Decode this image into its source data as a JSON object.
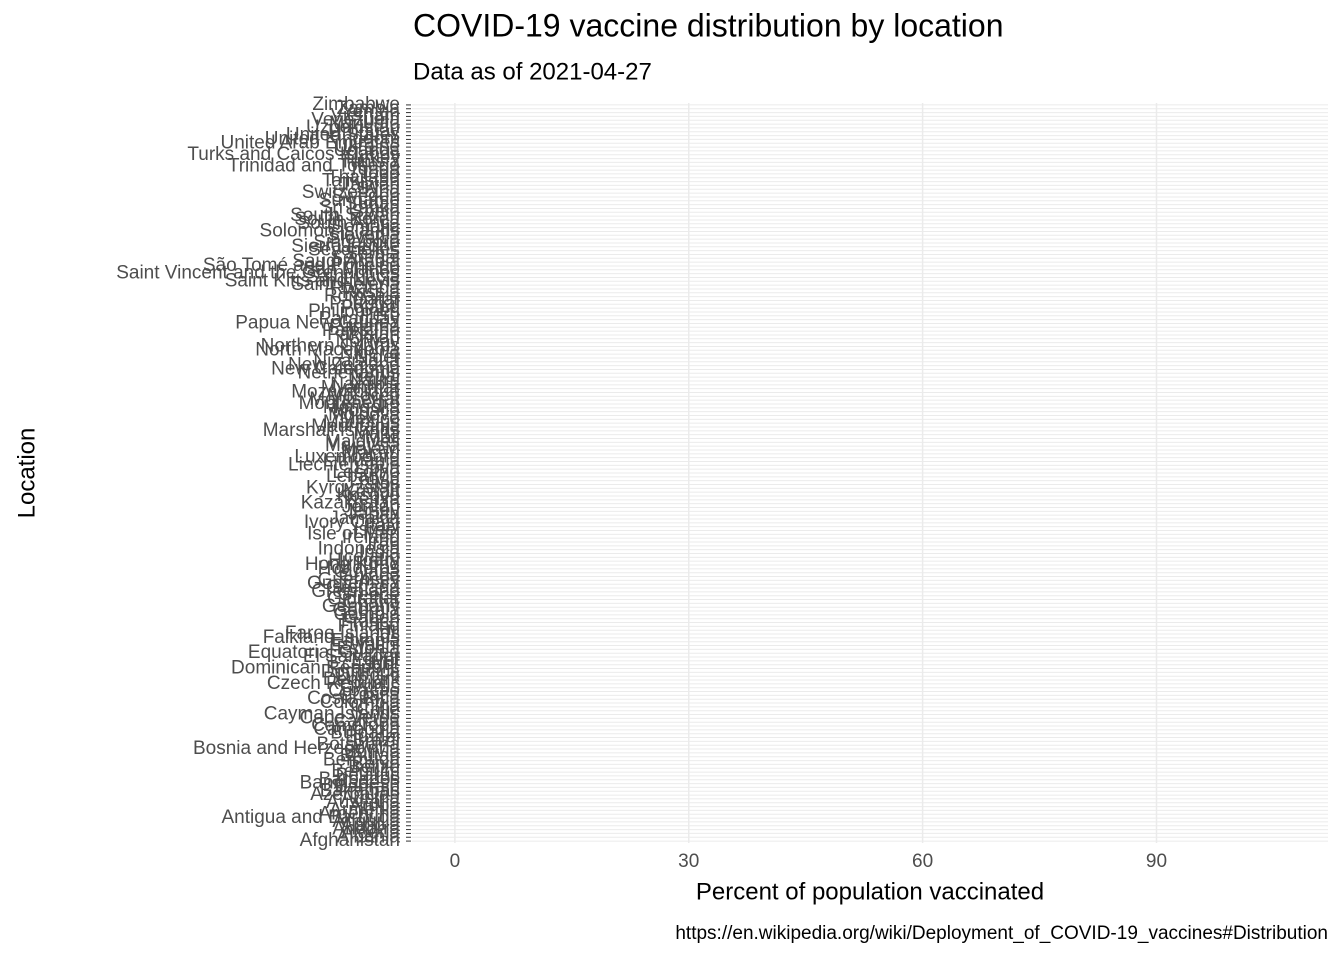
{
  "chart_data": {
    "type": "bar",
    "orientation": "horizontal",
    "title": "COVID-19 vaccine distribution by location",
    "subtitle": "Data as of 2021-04-27",
    "x_label": "Percent of population vaccinated",
    "y_label": "Location",
    "caption": "https://en.wikipedia.org/wiki/Deployment_of_COVID-19_vaccines#Distribution",
    "categories": [
      "Afghanistan",
      "Albania",
      "Algeria",
      "Andorra",
      "Angola",
      "Anguilla",
      "Antigua and Barbuda",
      "Argentina",
      "Armenia",
      "Aruba",
      "Australia",
      "Austria",
      "Azerbaijan",
      "Bahamas",
      "Bahrain",
      "Bangladesh",
      "Barbados",
      "Belarus",
      "Belgium",
      "Belize",
      "Benin",
      "Bermuda",
      "Bhutan",
      "Bolivia",
      "Bosnia and Herzegovina",
      "Botswana",
      "Brazil",
      "Brunei",
      "Bulgaria",
      "Cambodia",
      "Cameroon",
      "Canada",
      "Cape Verde",
      "Cayman Islands",
      "Chile",
      "China",
      "Colombia",
      "Costa Rica",
      "Croatia",
      "Curaçao",
      "Cyprus",
      "Czech Republic",
      "Denmark",
      "Djibouti",
      "Dominica",
      "Dominican Republic",
      "Ecuador",
      "Egypt",
      "El Salvador",
      "Equatorial Guinea",
      "Estonia",
      "Eswatini",
      "Ethiopia",
      "Falkland Islands",
      "Faroe Islands",
      "Fiji",
      "Finland",
      "France",
      "Gabon",
      "Gambia",
      "Georgia",
      "Germany",
      "Ghana",
      "Gibraltar",
      "Greece",
      "Greenland",
      "Grenada",
      "Guatemala",
      "Guernsey",
      "Guinea",
      "Guyana",
      "Honduras",
      "Hong Kong",
      "Hungary",
      "Iceland",
      "India",
      "Indonesia",
      "Iran",
      "Iraq",
      "Ireland",
      "Isle of Man",
      "Israel",
      "Italy",
      "Ivory Coast",
      "Jamaica",
      "Japan",
      "Jersey",
      "Jordan",
      "Kazakhstan",
      "Kenya",
      "Kosovo",
      "Kuwait",
      "Kyrgyzstan",
      "Laos",
      "Latvia",
      "Lebanon",
      "Lesotho",
      "Libya",
      "Liechtenstein",
      "Lithuania",
      "Luxembourg",
      "Macau",
      "Malawi",
      "Malaysia",
      "Maldives",
      "Mali",
      "Malta",
      "Marshall Islands",
      "Mauritania",
      "Mauritius",
      "Mexico",
      "Moldova",
      "Monaco",
      "Mongolia",
      "Montenegro",
      "Montserrat",
      "Morocco",
      "Mozambique",
      "Myanmar",
      "Namibia",
      "Nauru",
      "Nepal",
      "Netherlands",
      "New Caledonia",
      "New Zealand",
      "Nicaragua",
      "Niger",
      "Nigeria",
      "North Macedonia",
      "Northern Cyprus",
      "Norway",
      "Oman",
      "Pakistan",
      "Palestine",
      "Panama",
      "Papua New Guinea",
      "Paraguay",
      "Peru",
      "Philippines",
      "Poland",
      "Portugal",
      "Qatar",
      "Romania",
      "Russia",
      "Rwanda",
      "Saint Helena",
      "Saint Kitts and Nevis",
      "Saint Lucia",
      "Saint Vincent and the Grenadines",
      "San Marino",
      "São Tomé and Príncipe",
      "Saudi Arabia",
      "Senegal",
      "Serbia",
      "Seychelles",
      "Sierra Leone",
      "Singapore",
      "Slovakia",
      "Slovenia",
      "Solomon Islands",
      "Somalia",
      "South Africa",
      "South Korea",
      "South Sudan",
      "Spain",
      "Sri Lanka",
      "Sudan",
      "Suriname",
      "Sweden",
      "Switzerland",
      "Syria",
      "Taiwan",
      "Tajikistan",
      "Thailand",
      "Togo",
      "Tonga",
      "Trinidad and Tobago",
      "Tunisia",
      "Turkey",
      "Turks and Caicos Islands",
      "Uganda",
      "Ukraine",
      "United Arab Emirates",
      "United Kingdom",
      "United States",
      "Uruguay",
      "Uzbekistan",
      "Vanuatu",
      "Venezuela",
      "Vietnam",
      "Yemen",
      "Zambia",
      "Zimbabwe"
    ],
    "xlim": [
      -5.5,
      112
    ],
    "xticks": [
      0,
      30,
      60,
      90
    ],
    "grid": true
  }
}
